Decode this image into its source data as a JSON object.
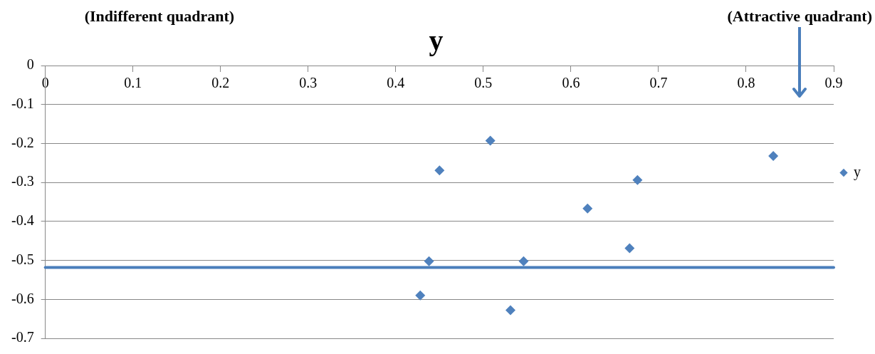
{
  "chart_data": {
    "type": "scatter",
    "title": "y",
    "annotations": [
      "(Indifferent quadrant)",
      "(Attractive quadrant)"
    ],
    "series": [
      {
        "name": "y",
        "color": "#4f81bd",
        "x": [
          0.508,
          0.45,
          0.676,
          0.619,
          0.667,
          0.438,
          0.546,
          0.428,
          0.531,
          0.831
        ],
        "values": [
          -0.193,
          -0.269,
          -0.294,
          -0.367,
          -0.469,
          -0.502,
          -0.502,
          -0.59,
          -0.628,
          -0.232
        ]
      }
    ],
    "ref_lines": [
      {
        "axis": "y",
        "value": -0.518,
        "color": "#4a7ebb"
      }
    ],
    "xlim": [
      0,
      0.9
    ],
    "xticks": [
      0,
      0.1,
      0.2,
      0.3,
      0.4,
      0.5,
      0.6,
      0.7,
      0.8,
      0.9
    ],
    "ylim": [
      -0.7,
      0
    ],
    "yticks": [
      0,
      -0.1,
      -0.2,
      -0.3,
      -0.4,
      -0.5,
      -0.6,
      -0.7
    ],
    "grid": "y",
    "legend": "right",
    "marker": "diamond"
  }
}
